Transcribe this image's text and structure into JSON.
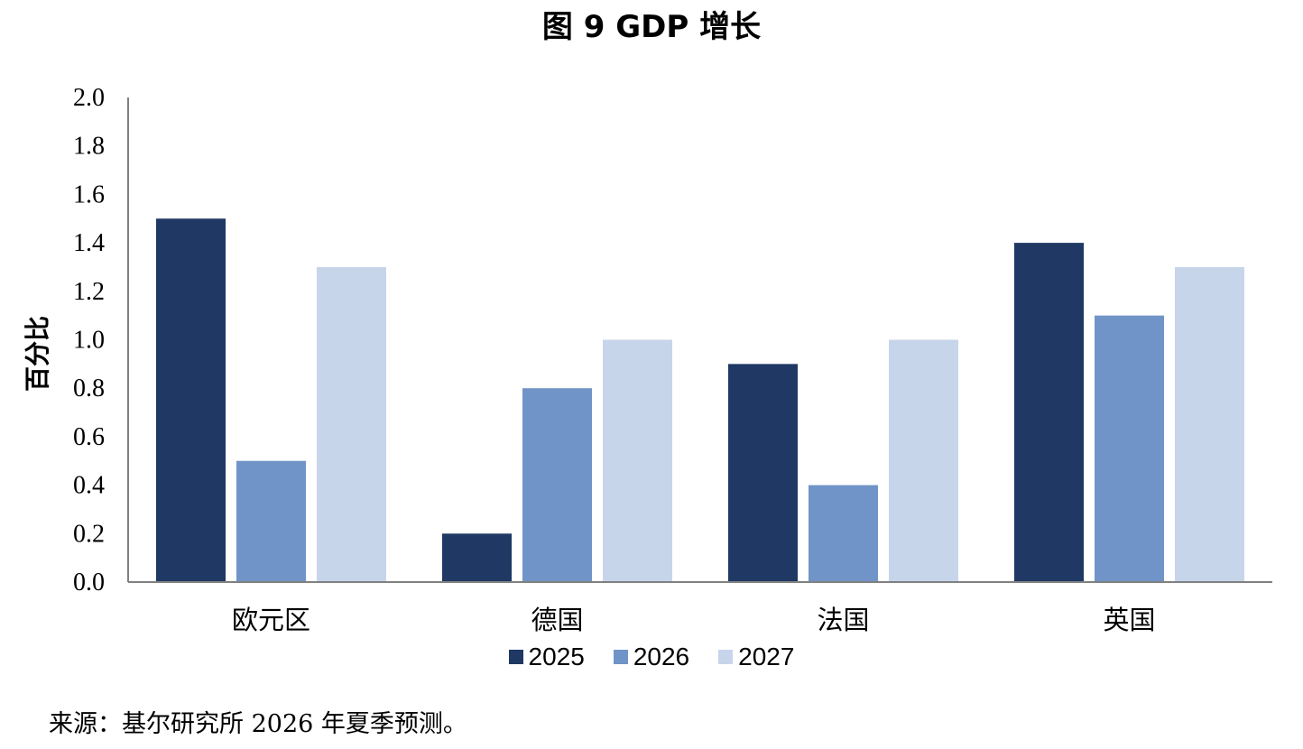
{
  "chart_data": {
    "type": "bar",
    "title": "图 9 GDP 增长",
    "ylabel": "百分比",
    "xlabel": "",
    "categories": [
      "欧元区",
      "德国",
      "法国",
      "英国"
    ],
    "series": [
      {
        "name": "2025",
        "values": [
          1.5,
          0.2,
          0.9,
          1.4
        ],
        "color": "#1f3864"
      },
      {
        "name": "2026",
        "values": [
          0.5,
          0.8,
          0.4,
          1.1
        ],
        "color": "#7094c7"
      },
      {
        "name": "2027",
        "values": [
          1.3,
          1.0,
          1.0,
          1.3
        ],
        "color": "#c7d5eb"
      }
    ],
    "ylim": [
      0,
      2.0
    ],
    "yticks": [
      "0.0",
      "0.2",
      "0.4",
      "0.6",
      "0.8",
      "1.0",
      "1.2",
      "1.4",
      "1.6",
      "1.8",
      "2.0"
    ],
    "grid": false,
    "legend_position": "bottom"
  },
  "source": "来源：基尔研究所 2026 年夏季预测。"
}
